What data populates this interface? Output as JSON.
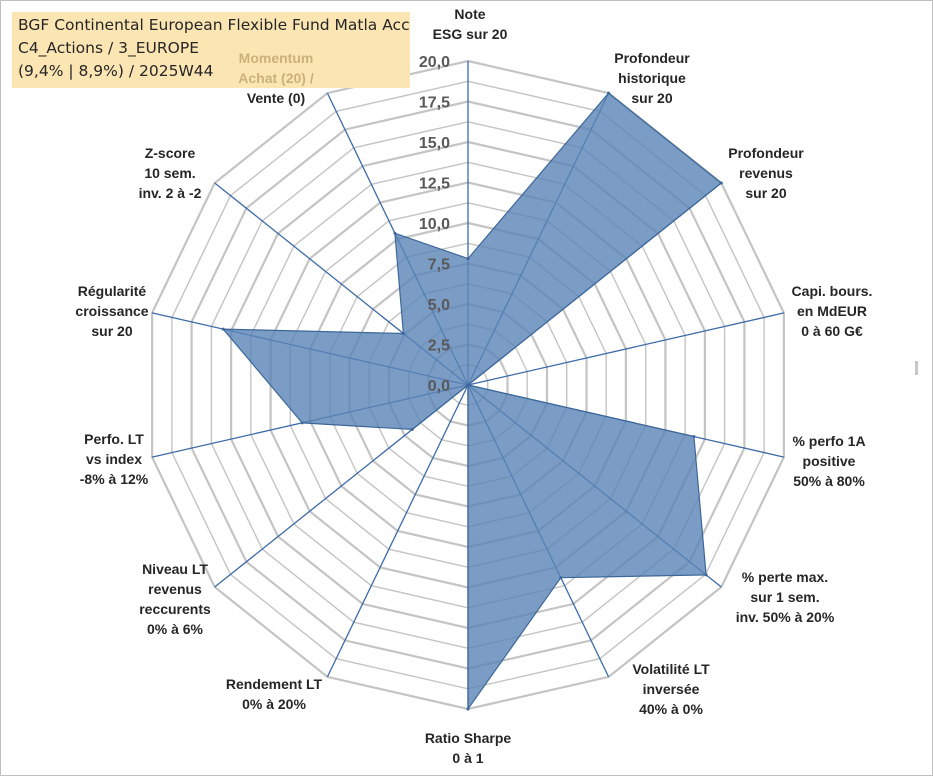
{
  "title": {
    "line1": "BGF Continental European Flexible Fund Matla Acc",
    "line2": "C4_Actions / 3_EUROPE",
    "line3": "(9,4% | 8,9%) / 2025W44"
  },
  "colors": {
    "fill": "#5a84b6",
    "fill_opacity": 0.8,
    "stroke": "#3d6799",
    "spoke": "#3d6aa8",
    "grid": "#c4c4c4",
    "title_bg": "#fbe5b3"
  },
  "chart_data": {
    "type": "radar",
    "rmax": 20,
    "ticks": [
      "0,0",
      "2,5",
      "5,0",
      "7,5",
      "10,0",
      "12,5",
      "15,0",
      "17,5",
      "20,0"
    ],
    "axes": [
      {
        "label": [
          "Note",
          "ESG sur 20"
        ],
        "value": 7.8
      },
      {
        "label": [
          "Profondeur",
          "historique",
          "sur 20"
        ],
        "value": 20
      },
      {
        "label": [
          "Profondeur",
          "revenus",
          "sur 20"
        ],
        "value": 20
      },
      {
        "label": [
          "Capi. bours.",
          "en MdEUR",
          "0 à 60 G€"
        ],
        "value": 0
      },
      {
        "label": [
          "% perfo 1A",
          "positive",
          "50% à 80%"
        ],
        "value": 14.3
      },
      {
        "label": [
          "% perte max.",
          "sur 1 sem.",
          "inv. 50% à 20%"
        ],
        "value": 18.8
      },
      {
        "label": [
          "Volatilité LT",
          "inversée",
          "40% à 0%"
        ],
        "value": 13.2
      },
      {
        "label": [
          "Ratio Sharpe",
          "0 à 1"
        ],
        "value": 20
      },
      {
        "label": [
          "Rendement LT",
          "0% à 20%"
        ],
        "value": 0
      },
      {
        "label": [
          "Niveau LT",
          "revenus",
          "reccurents",
          "0% à 6%"
        ],
        "value": 4.4
      },
      {
        "label": [
          "Perfo. LT",
          "vs index",
          "-8% à 12%"
        ],
        "value": 10.5
      },
      {
        "label": [
          "Régularité",
          "croissance",
          "sur 20"
        ],
        "value": 15.5
      },
      {
        "label": [
          "Z-score",
          "10 sem.",
          "inv. 2 à -2"
        ],
        "value": 5.1
      },
      {
        "label": [
          "Momentum",
          "Achat (20) /",
          "Vente (0)"
        ],
        "value": 10.4
      }
    ]
  }
}
